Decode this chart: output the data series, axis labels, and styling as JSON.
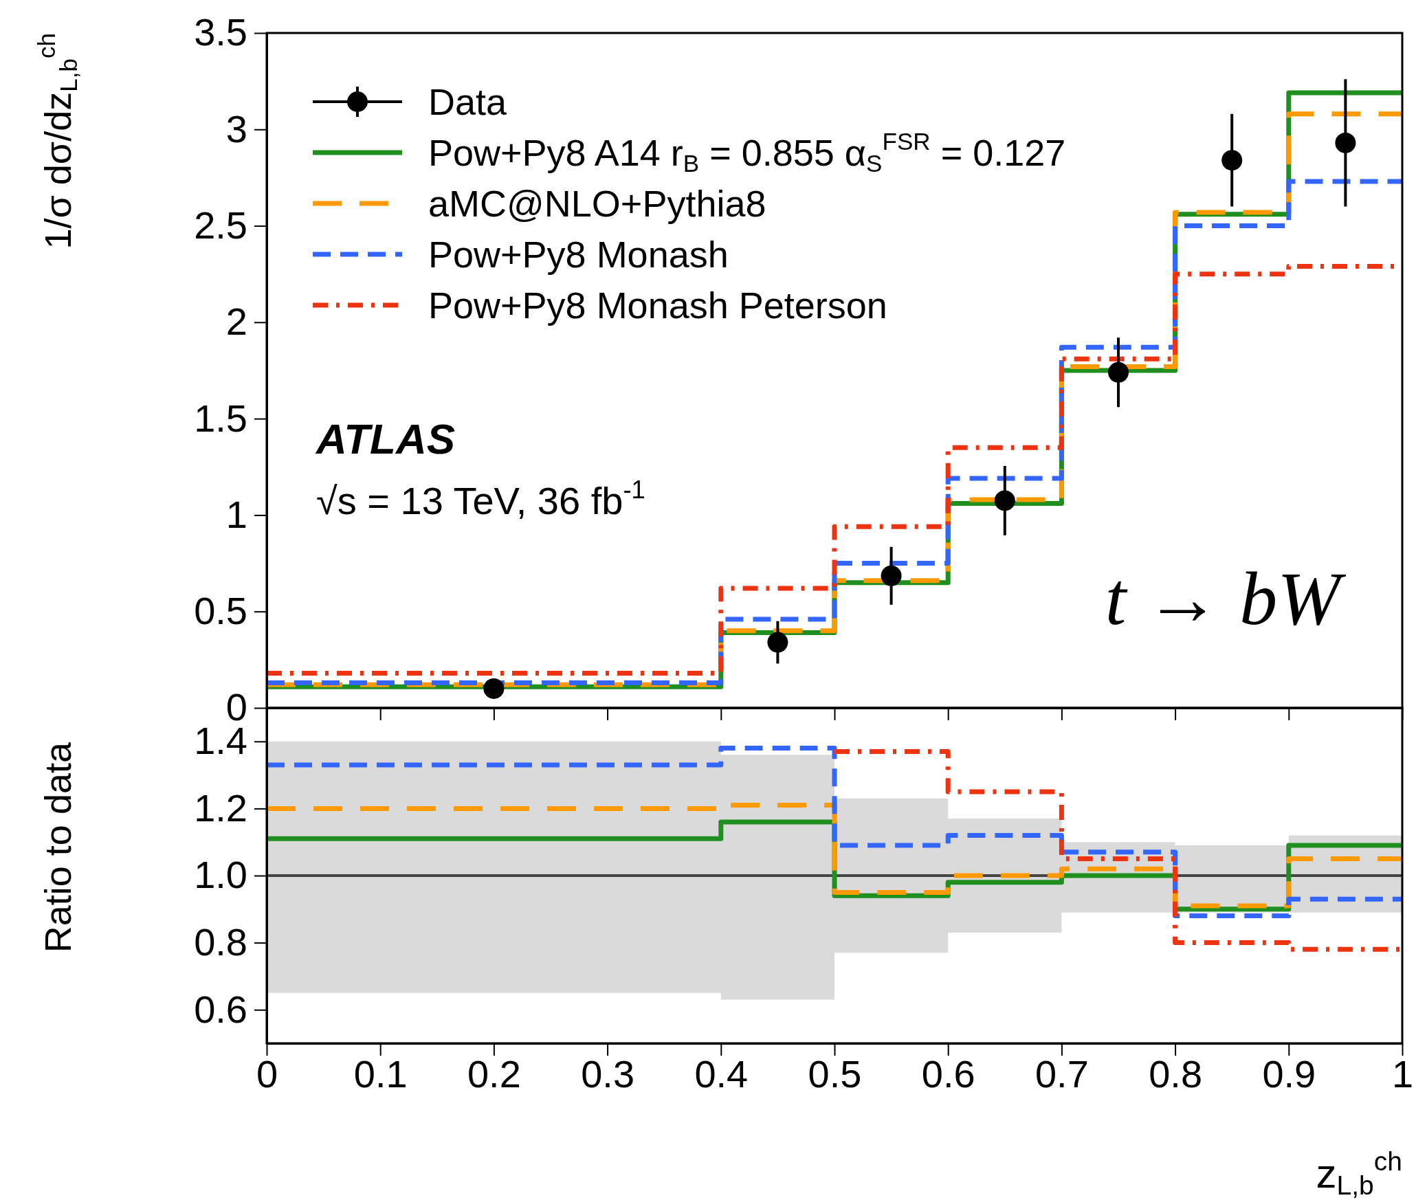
{
  "chart_data": [
    {
      "type": "step",
      "ylabel": "1/σ dσ/dz$_{L,b}$$^{ch}$",
      "xlim": [
        0,
        1
      ],
      "ylim": [
        0,
        3.5
      ],
      "xticks": [
        0,
        0.1,
        0.2,
        0.3,
        0.4,
        0.5,
        0.6,
        0.7,
        0.8,
        0.9,
        1
      ],
      "yticks": [
        0,
        0.5,
        1,
        1.5,
        2,
        2.5,
        3,
        3.5
      ],
      "tick_labels": "y",
      "legend": "top left",
      "annotations": [
        "ATLAS",
        "√s = 13 TeV, 36 fb$^{-1}$",
        "t → bW"
      ],
      "series": [
        {
          "name": "Data",
          "type": "scatter",
          "marker": "circle",
          "color": "#000000",
          "x": [
            0.2,
            0.45,
            0.55,
            0.65,
            0.75,
            0.85,
            0.95
          ],
          "values": [
            0.1,
            0.34,
            0.685,
            1.075,
            1.74,
            2.84,
            2.93
          ],
          "errors": [
            0.05,
            0.11,
            0.15,
            0.18,
            0.18,
            0.24,
            0.33
          ]
        },
        {
          "name": "Pow+Py8 A14 r$_{B}$ = 0.855 α$_{S}$$^{FSR}$ = 0.127",
          "color": "#1f8f1f",
          "line_style": "solid",
          "x": [
            0,
            0.4,
            0.5,
            0.6,
            0.7,
            0.8,
            0.9,
            1
          ],
          "values": [
            0.11,
            0.39,
            0.65,
            1.06,
            1.75,
            2.56,
            3.19,
            3.19
          ]
        },
        {
          "name": "aMC@NLO+Pythia8",
          "color": "#ff9900",
          "line_style": "dashed",
          "x": [
            0,
            0.4,
            0.5,
            0.6,
            0.7,
            0.8,
            0.9,
            1
          ],
          "values": [
            0.12,
            0.4,
            0.66,
            1.08,
            1.77,
            2.57,
            3.08,
            3.08
          ]
        },
        {
          "name": "Pow+Py8 Monash",
          "color": "#3366ff",
          "line_style": "dashed",
          "x": [
            0,
            0.4,
            0.5,
            0.6,
            0.7,
            0.8,
            0.9,
            1
          ],
          "values": [
            0.13,
            0.46,
            0.75,
            1.19,
            1.87,
            2.5,
            2.73,
            2.73
          ]
        },
        {
          "name": "Pow+Py8 Monash Peterson",
          "color": "#ee3311",
          "line_style": "dashed",
          "x": [
            0,
            0.4,
            0.5,
            0.6,
            0.7,
            0.8,
            0.9,
            1
          ],
          "values": [
            0.18,
            0.62,
            0.94,
            1.35,
            1.81,
            2.25,
            2.29,
            2.29
          ]
        }
      ]
    },
    {
      "type": "step",
      "ylabel": "Ratio to data",
      "xlabel": "z$_{L,b}$$^{ch}$",
      "xlim": [
        0,
        1
      ],
      "ylim": [
        0.5,
        1.5
      ],
      "xticks": [
        0,
        0.1,
        0.2,
        0.3,
        0.4,
        0.5,
        0.6,
        0.7,
        0.8,
        0.9,
        1
      ],
      "yticks": [
        0.6,
        0.8,
        {
          "value": 1,
          "label": "1.0"
        },
        1.2,
        1.4
      ],
      "series": [
        {
          "color": "#444444",
          "line_style": "solid",
          "x": [
            0,
            0.4,
            0.5,
            0.6,
            0.7,
            0.8,
            0.9,
            1
          ],
          "values": [
            1,
            1,
            1,
            1,
            1,
            1,
            1,
            1
          ],
          "lower": [
            0.65,
            0.63,
            0.77,
            0.83,
            0.89,
            0.89,
            0.89,
            0.89
          ],
          "upper": [
            1.4,
            1.36,
            1.23,
            1.17,
            1.1,
            1.09,
            1.12,
            1.12
          ]
        },
        {
          "color": "#1f8f1f",
          "line_style": "solid",
          "x": [
            0,
            0.4,
            0.5,
            0.6,
            0.7,
            0.8,
            0.9,
            1
          ],
          "values": [
            1.11,
            1.16,
            0.94,
            0.98,
            1.0,
            0.9,
            1.09,
            1.09
          ]
        },
        {
          "color": "#ff9900",
          "line_style": "dashed",
          "x": [
            0,
            0.4,
            0.5,
            0.6,
            0.7,
            0.8,
            0.9,
            1
          ],
          "values": [
            1.2,
            1.21,
            0.95,
            1.0,
            1.02,
            0.91,
            1.05,
            1.05
          ]
        },
        {
          "color": "#3366ff",
          "line_style": "dashed",
          "x": [
            0,
            0.4,
            0.5,
            0.6,
            0.7,
            0.8,
            0.9,
            1
          ],
          "values": [
            1.33,
            1.38,
            1.09,
            1.12,
            1.07,
            0.88,
            0.93,
            0.93
          ]
        },
        {
          "color": "#ee3311",
          "line_style": "dashed",
          "x": [
            0.5,
            0.6,
            0.7,
            0.8,
            0.9,
            1
          ],
          "values": [
            1.37,
            1.25,
            1.05,
            0.8,
            0.78,
            0.78
          ]
        }
      ]
    }
  ]
}
